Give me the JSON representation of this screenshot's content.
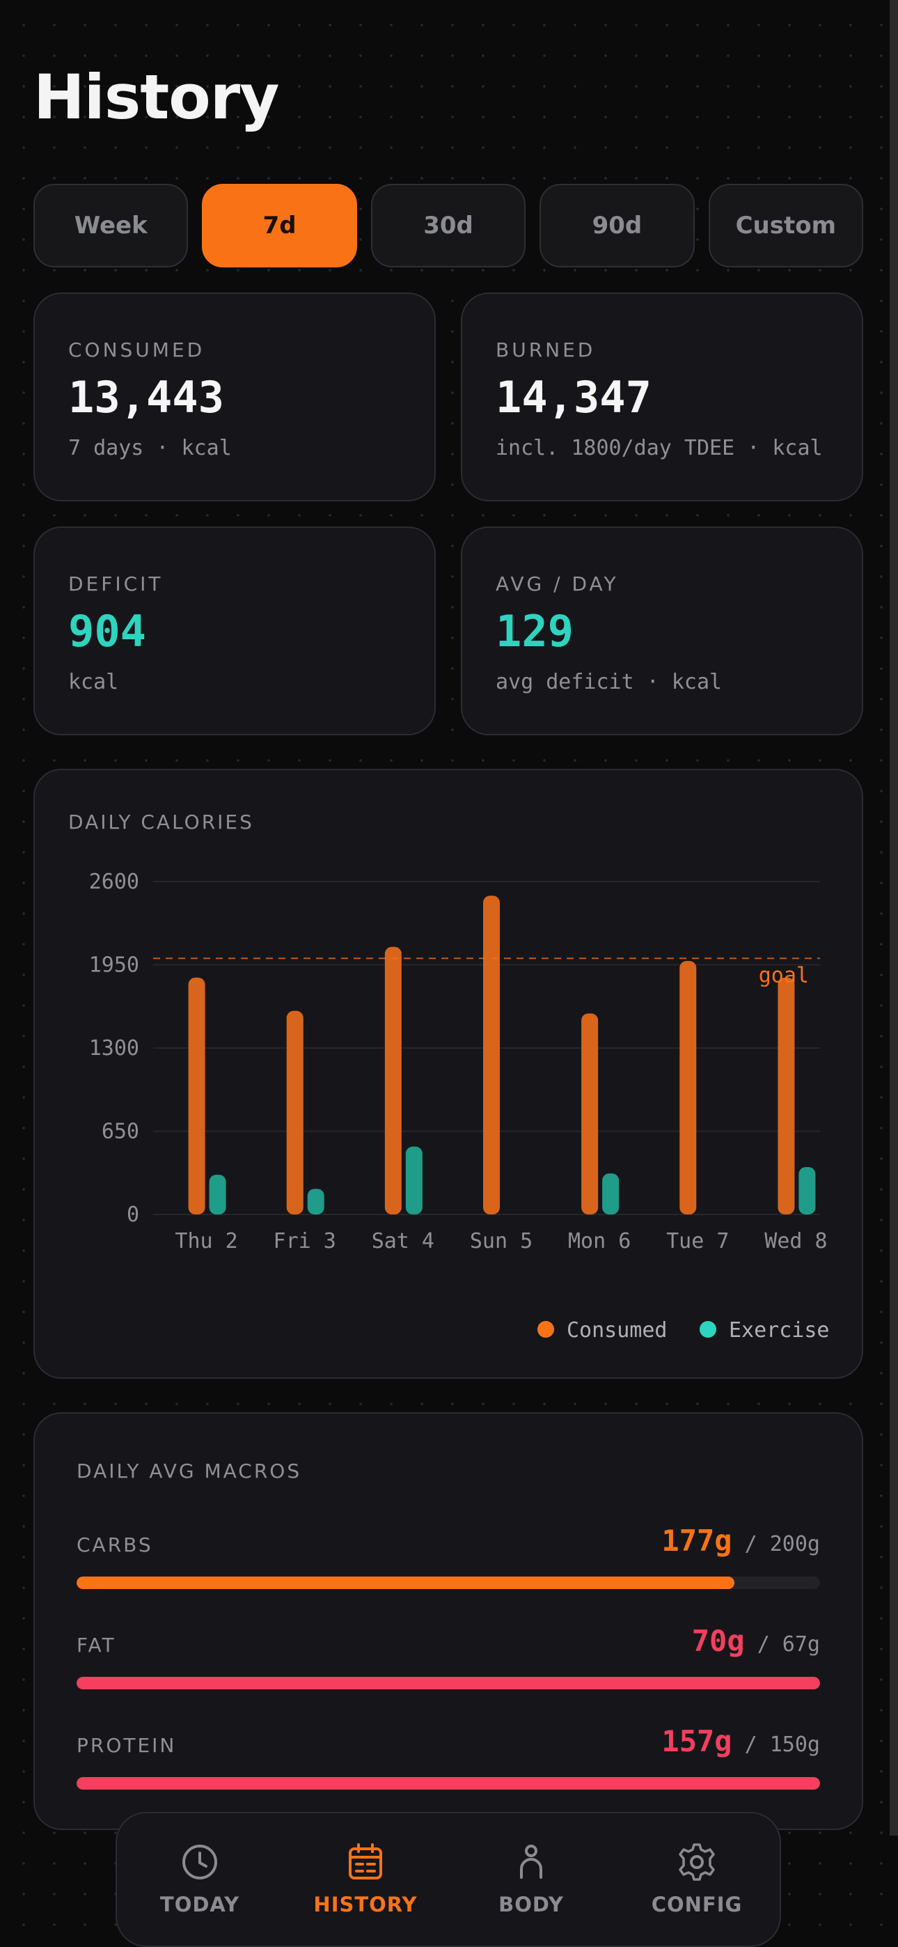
{
  "page": {
    "title": "History"
  },
  "ranges": [
    {
      "label": "Week",
      "active": false
    },
    {
      "label": "7d",
      "active": true
    },
    {
      "label": "30d",
      "active": false
    },
    {
      "label": "90d",
      "active": false
    },
    {
      "label": "Custom",
      "active": false
    }
  ],
  "stats": {
    "consumed": {
      "label": "CONSUMED",
      "value": "13,443",
      "sub": "7 days · kcal"
    },
    "burned": {
      "label": "BURNED",
      "value": "14,347",
      "sub": "incl. 1800/day TDEE · kcal"
    },
    "deficit": {
      "label": "DEFICIT",
      "value": "904",
      "sub": "kcal"
    },
    "avg": {
      "label": "AVG / DAY",
      "value": "129",
      "sub": "avg deficit · kcal"
    }
  },
  "daily_chart": {
    "label": "DAILY CALORIES",
    "goal_label": "goal",
    "legend": {
      "consumed": "Consumed",
      "exercise": "Exercise"
    }
  },
  "colors": {
    "accent": "#f97316",
    "consumed_bar": "#d9651c",
    "exercise_bar": "#1f9c8a",
    "teal": "#2dd4bf",
    "pink": "#f43f5e"
  },
  "chart_data": {
    "type": "bar",
    "title": "DAILY CALORIES",
    "categories": [
      "Thu 2",
      "Fri 3",
      "Sat 4",
      "Sun 5",
      "Mon 6",
      "Tue 7",
      "Wed 8"
    ],
    "series": [
      {
        "name": "Consumed",
        "values": [
          1850,
          1590,
          2090,
          2490,
          1570,
          1980,
          1850
        ]
      },
      {
        "name": "Exercise",
        "values": [
          310,
          200,
          530,
          0,
          320,
          0,
          370
        ]
      }
    ],
    "yticks": [
      0,
      650,
      1300,
      1950,
      2600
    ],
    "ylim": [
      0,
      2600
    ],
    "goal": 2000,
    "legend": [
      "Consumed",
      "Exercise"
    ]
  },
  "macros": {
    "label": "DAILY AVG MACROS",
    "items": [
      {
        "name": "CARBS",
        "value": "177g",
        "target": "/ 200g",
        "fraction": 0.885,
        "color": "#f97316"
      },
      {
        "name": "FAT",
        "value": "70g",
        "target": "/ 67g",
        "fraction": 1.0,
        "color": "#f43f5e"
      },
      {
        "name": "PROTEIN",
        "value": "157g",
        "target": "/ 150g",
        "fraction": 1.0,
        "color": "#f43f5e"
      }
    ]
  },
  "nav": [
    {
      "label": "TODAY",
      "icon": "clock-icon",
      "active": false
    },
    {
      "label": "HISTORY",
      "icon": "calendar-icon",
      "active": true
    },
    {
      "label": "BODY",
      "icon": "person-icon",
      "active": false
    },
    {
      "label": "CONFIG",
      "icon": "gear-icon",
      "active": false
    }
  ]
}
